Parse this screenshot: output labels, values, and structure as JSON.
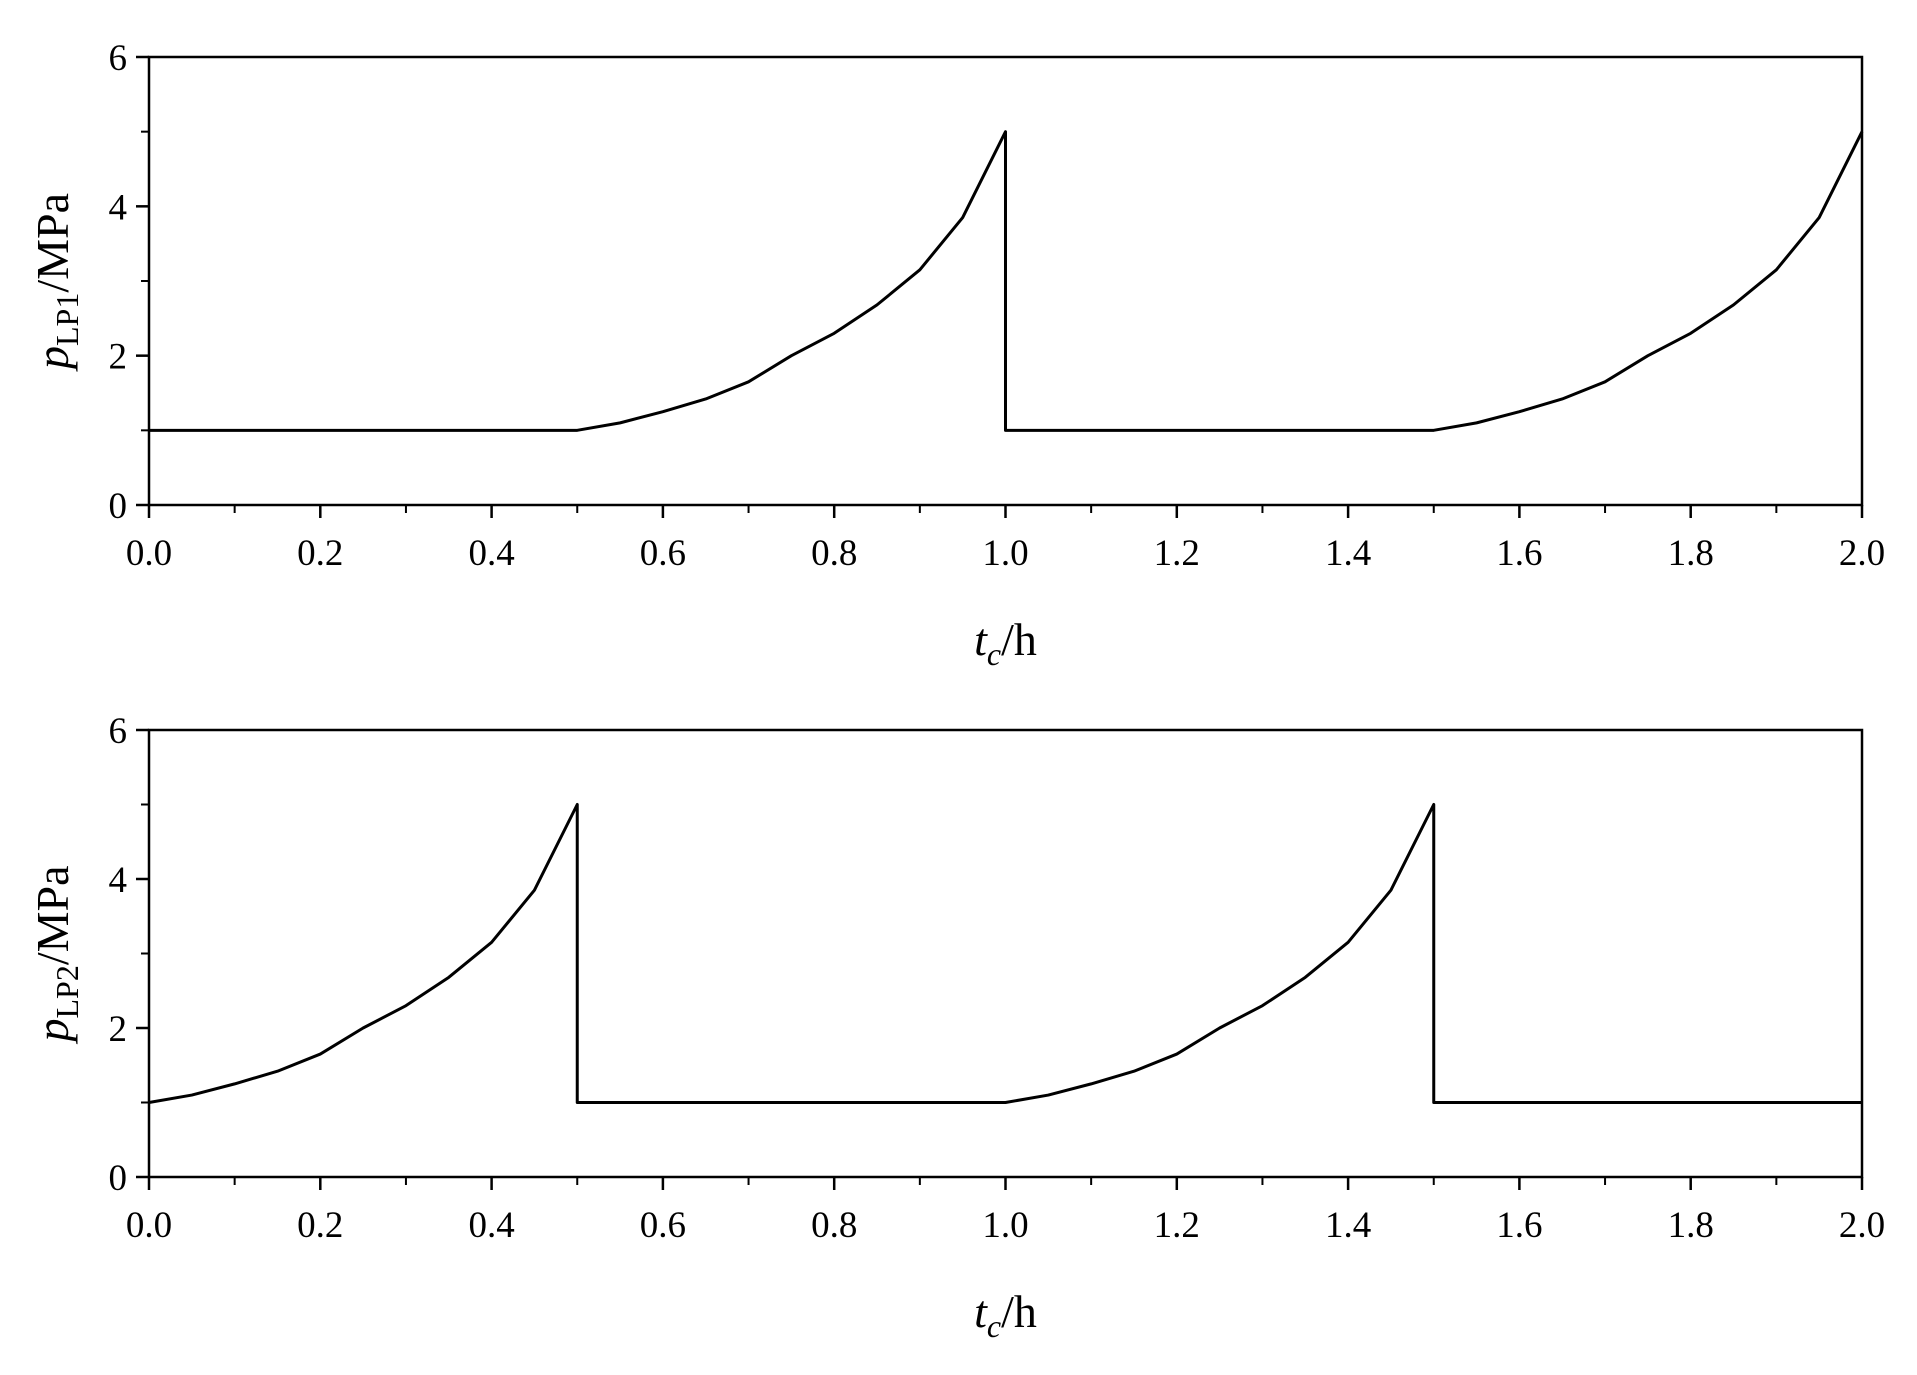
{
  "chart_data": [
    {
      "type": "line",
      "x_label": {
        "symbol": "t",
        "subscript": "c",
        "unit": "/h"
      },
      "y_label": {
        "symbol": "p",
        "subscript": "LP1",
        "unit": "/MPa"
      },
      "x": [
        0,
        0.5,
        0.55,
        0.6,
        0.65,
        0.7,
        0.75,
        0.8,
        0.85,
        0.9,
        0.95,
        1.0,
        1.0,
        1.5,
        1.55,
        1.6,
        1.65,
        1.7,
        1.75,
        1.8,
        1.85,
        1.9,
        1.95,
        2.0
      ],
      "values": [
        1,
        1,
        1.1,
        1.25,
        1.42,
        1.65,
        2.0,
        2.3,
        2.68,
        3.15,
        3.85,
        5.0,
        1,
        1,
        1.1,
        1.25,
        1.42,
        1.65,
        2.0,
        2.3,
        2.68,
        3.15,
        3.85,
        5.0
      ],
      "color": "#000000",
      "xlim": [
        0,
        2
      ],
      "ylim": [
        0,
        6
      ],
      "xticks": [
        {
          "value": 0,
          "label": "0.0"
        },
        0.2,
        0.4,
        0.6,
        0.8,
        {
          "value": 1,
          "label": "1.0"
        },
        1.2,
        1.4,
        1.6,
        1.8,
        {
          "value": 2,
          "label": "2.0"
        }
      ],
      "yticks": [
        0,
        2,
        4,
        6
      ]
    },
    {
      "type": "line",
      "x_label": {
        "symbol": "t",
        "subscript": "c",
        "unit": "/h"
      },
      "y_label": {
        "symbol": "p",
        "subscript": "LP2",
        "unit": "/MPa"
      },
      "x": [
        0,
        0.05,
        0.1,
        0.15,
        0.2,
        0.25,
        0.3,
        0.35,
        0.4,
        0.45,
        0.5,
        0.5,
        1.0,
        1.05,
        1.1,
        1.15,
        1.2,
        1.25,
        1.3,
        1.35,
        1.4,
        1.45,
        1.5,
        1.5,
        2.0
      ],
      "values": [
        1,
        1.1,
        1.25,
        1.42,
        1.65,
        2.0,
        2.3,
        2.68,
        3.15,
        3.85,
        5.0,
        1,
        1,
        1.1,
        1.25,
        1.42,
        1.65,
        2.0,
        2.3,
        2.68,
        3.15,
        3.85,
        5.0,
        1,
        1
      ],
      "color": "#000000",
      "xlim": [
        0,
        2
      ],
      "ylim": [
        0,
        6
      ],
      "xticks": [
        {
          "value": 0,
          "label": "0.0"
        },
        0.2,
        0.4,
        0.6,
        0.8,
        {
          "value": 1,
          "label": "1.0"
        },
        1.2,
        1.4,
        1.6,
        1.8,
        {
          "value": 2,
          "label": "2.0"
        }
      ],
      "yticks": [
        0,
        2,
        4,
        6
      ]
    }
  ]
}
